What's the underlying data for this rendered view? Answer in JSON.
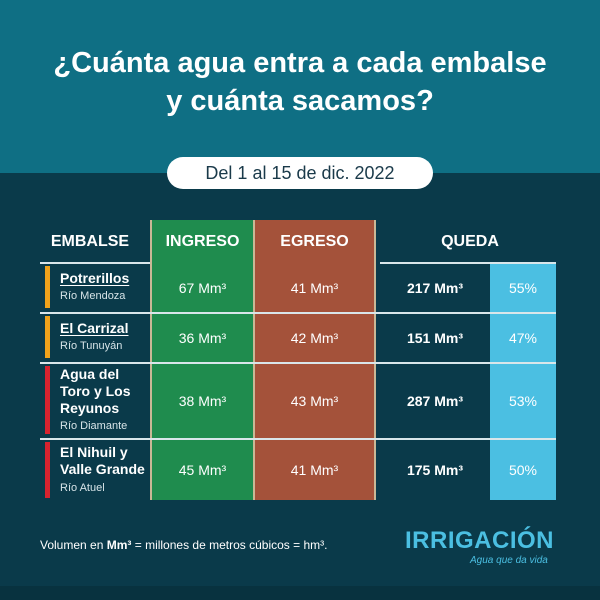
{
  "title": {
    "line1_bold": "¿Cuánta agua entra",
    "line1_rest": " a cada embalse",
    "line2_pre": "y ",
    "line2_bold": "cuánta sacamos",
    "line2_post": "?"
  },
  "date_range": "Del 1 al 15 de dic. 2022",
  "headers": {
    "embalse": "EMBALSE",
    "ingreso": "INGRESO",
    "egreso": "EGRESO",
    "queda": "QUEDA"
  },
  "colors": {
    "header_bg": "#0f6f84",
    "page_bg": "#0a3a4a",
    "ingreso": "#1f8c4e",
    "egreso": "#a4523a",
    "percent": "#4bbfe2",
    "orange_marker": "#f0a21b",
    "red_marker": "#d7232f"
  },
  "rows": [
    {
      "name_lines": [
        "Potrerillos"
      ],
      "river": "Río Mendoza",
      "marker": "orange",
      "ingreso": "67 Mm³",
      "egreso": "41 Mm³",
      "queda": "217 Mm³",
      "percent": "55%"
    },
    {
      "name_lines": [
        "El Carrizal"
      ],
      "river": "Río Tunuyán",
      "marker": "orange",
      "ingreso": "36 Mm³",
      "egreso": "42 Mm³",
      "queda": "151 Mm³",
      "percent": "47%"
    },
    {
      "name_lines": [
        "Agua del",
        "Toro y Los",
        "Reyunos"
      ],
      "river": "Río Diamante",
      "marker": "red",
      "ingreso": "38 Mm³",
      "egreso": "43 Mm³",
      "queda": "287 Mm³",
      "percent": "53%"
    },
    {
      "name_lines": [
        "El Nihuil y",
        "Valle Grande"
      ],
      "river": "Río Atuel",
      "marker": "red",
      "ingreso": "45 Mm³",
      "egreso": "41 Mm³",
      "queda": "175 Mm³",
      "percent": "50%"
    }
  ],
  "footnote": {
    "pre": "Volumen en ",
    "bold": "Mm³",
    "post": " = millones de metros cúbicos = hm³."
  },
  "logo": {
    "text": "IRRIGACIÓN",
    "tagline": "Agua que da vida"
  }
}
